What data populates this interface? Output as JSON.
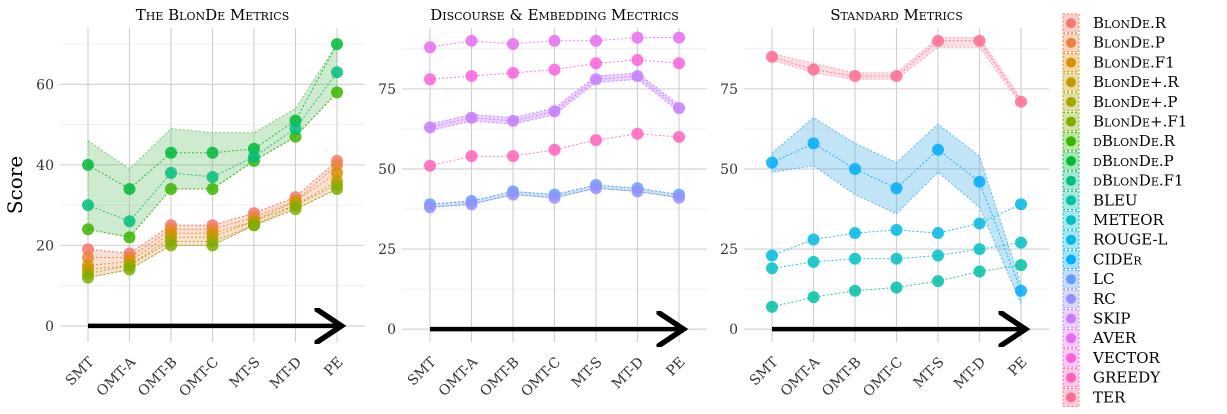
{
  "chart_data": {
    "type": "line",
    "ylabel": "Score",
    "categories": [
      "SMT",
      "OMT-A",
      "OMT-B",
      "OMT-C",
      "MT-S",
      "MT-D",
      "PE"
    ],
    "panels": [
      {
        "title": "The BlonDe Metrics",
        "ylim": [
          -4,
          74
        ],
        "yticks": [
          0,
          20,
          40,
          60
        ],
        "grid": true,
        "series": [
          {
            "name": "BlonDe.R",
            "values": [
              19,
              18,
              25,
              25,
              28,
              32,
              41
            ]
          },
          {
            "name": "BlonDe.P",
            "values": [
              17,
              17,
              24,
              24,
              27,
              31,
              40
            ]
          },
          {
            "name": "BlonDe.F1",
            "values": [
              15,
              16,
              23,
              23,
              26,
              31,
              38
            ]
          },
          {
            "name": "BlonDe+.R",
            "values": [
              14,
              15,
              22,
              22,
              26,
              30,
              36
            ]
          },
          {
            "name": "BlonDe+.P",
            "values": [
              13,
              15,
              21,
              21,
              25,
              30,
              35
            ]
          },
          {
            "name": "BlonDe+.F1",
            "values": [
              12,
              14,
              20,
              20,
              25,
              29,
              34
            ]
          },
          {
            "name": "dBlonDe.R",
            "values": [
              24,
              22,
              34,
              34,
              41,
              47,
              58
            ]
          },
          {
            "name": "dBlonDe.P",
            "values": [
              40,
              34,
              43,
              43,
              44,
              51,
              70
            ]
          },
          {
            "name": "dBlonDe.F1",
            "values": [
              30,
              26,
              38,
              37,
              42,
              49,
              63
            ]
          }
        ],
        "bands": [
          {
            "group": "BlonDe",
            "upper": [
              19,
              18,
              25,
              25,
              28,
              32,
              41
            ],
            "lower": [
              12,
              14,
              20,
              20,
              25,
              29,
              34
            ],
            "color": "#f4a582"
          },
          {
            "group": "dBlonDe",
            "upper": [
              46,
              39,
              49,
              48,
              48,
              54,
              70
            ],
            "lower": [
              24,
              22,
              34,
              34,
              41,
              47,
              58
            ],
            "color": "#74c476"
          }
        ]
      },
      {
        "title": "Discourse & Embedding Mectrics",
        "ylim": [
          -4,
          94
        ],
        "yticks": [
          0,
          25,
          50,
          75
        ],
        "grid": true,
        "series": [
          {
            "name": "LC",
            "values": [
              39,
              40,
              43,
              42,
              45,
              44,
              42
            ]
          },
          {
            "name": "RC",
            "values": [
              38,
              39,
              42,
              41,
              44,
              43,
              41
            ]
          },
          {
            "name": "SKIP",
            "values": [
              63,
              66,
              65,
              68,
              78,
              79,
              69
            ]
          },
          {
            "name": "AVER",
            "values": [
              88,
              90,
              89,
              90,
              90,
              91,
              91
            ]
          },
          {
            "name": "VECTOR",
            "values": [
              78,
              79,
              80,
              81,
              83,
              84,
              83
            ]
          },
          {
            "name": "GREEDY",
            "values": [
              51,
              54,
              54,
              56,
              59,
              61,
              60
            ]
          }
        ],
        "bands": [
          {
            "group": "LC-RC",
            "upper": [
              39,
              40,
              43,
              42,
              45,
              44,
              42
            ],
            "lower": [
              38,
              39,
              42,
              41,
              44,
              43,
              41
            ],
            "color": "#6baed6"
          },
          {
            "group": "SKIP",
            "upper": [
              64,
              67,
              66,
              69,
              79,
              80,
              70
            ],
            "lower": [
              62,
              65,
              64,
              67,
              77,
              78,
              68
            ],
            "color": "#c77cff"
          }
        ]
      },
      {
        "title": "Standard Metrics",
        "ylim": [
          -4,
          94
        ],
        "yticks": [
          0,
          25,
          50,
          75
        ],
        "grid": true,
        "series": [
          {
            "name": "TER",
            "values": [
              85,
              81,
              79,
              79,
              90,
              90,
              71
            ]
          },
          {
            "name": "BLEU",
            "values": [
              7,
              10,
              12,
              13,
              15,
              18,
              20
            ]
          },
          {
            "name": "METEOR",
            "values": [
              19,
              21,
              22,
              22,
              23,
              25,
              27
            ]
          },
          {
            "name": "ROUGE-L",
            "values": [
              23,
              28,
              30,
              31,
              30,
              33,
              39
            ]
          },
          {
            "name": "CIDEr",
            "values": [
              52,
              58,
              50,
              44,
              56,
              46,
              12
            ]
          }
        ],
        "bands": [
          {
            "group": "CIDEr",
            "upper": [
              55,
              66,
              58,
              52,
              64,
              54,
              14
            ],
            "lower": [
              49,
              51,
              42,
              36,
              49,
              38,
              8
            ],
            "color": "#4fb3e8"
          },
          {
            "group": "TER",
            "upper": [
              86,
              83,
              80,
              80,
              91,
              91,
              72
            ],
            "lower": [
              84,
              80,
              78,
              78,
              88,
              88,
              70
            ],
            "color": "#f4a0b0"
          }
        ]
      }
    ],
    "legend": {
      "placement": "right",
      "entries": [
        {
          "label": "BlonDe.R",
          "color": "#f8766d"
        },
        {
          "label": "BlonDe.P",
          "color": "#e9823e"
        },
        {
          "label": "BlonDe.F1",
          "color": "#d89000"
        },
        {
          "label": "BlonDe+.R",
          "color": "#c49a00"
        },
        {
          "label": "BlonDe+.P",
          "color": "#a3a500"
        },
        {
          "label": "BlonDe+.F1",
          "color": "#7cae00"
        },
        {
          "label": "dBlonDe.R",
          "color": "#39b600"
        },
        {
          "label": "dBlonDe.P",
          "color": "#00ba38"
        },
        {
          "label": "dBlonDe.F1",
          "color": "#00bf7d"
        },
        {
          "label": "BLEU",
          "color": "#00c1a3"
        },
        {
          "label": "METEOR",
          "color": "#00bfc4"
        },
        {
          "label": "ROUGE-L",
          "color": "#00b9e3"
        },
        {
          "label": "CIDEr",
          "color": "#00adfa"
        },
        {
          "label": "LC",
          "color": "#619cff"
        },
        {
          "label": "RC",
          "color": "#9590ff"
        },
        {
          "label": "SKIP",
          "color": "#c77cff"
        },
        {
          "label": "AVER",
          "color": "#e76bf3"
        },
        {
          "label": "VECTOR",
          "color": "#fa62db"
        },
        {
          "label": "GREEDY",
          "color": "#ff62bc"
        },
        {
          "label": "TER",
          "color": "#ff6c91"
        }
      ]
    }
  }
}
